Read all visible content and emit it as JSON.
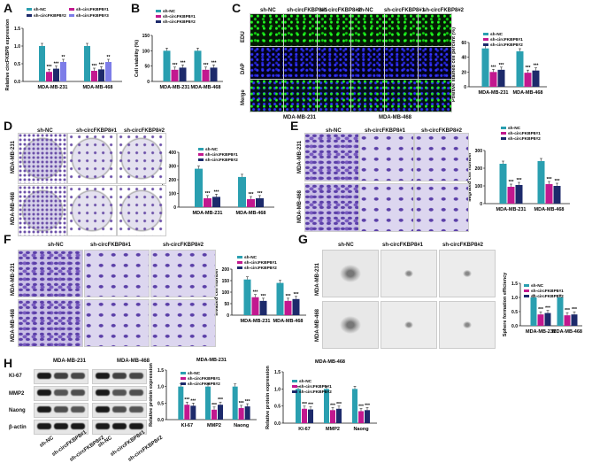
{
  "panels": {
    "A": "A",
    "B": "B",
    "C": "C",
    "D": "D",
    "E": "E",
    "F": "F",
    "G": "G",
    "H": "H"
  },
  "colors": {
    "nc": "#2a9fb0",
    "cf1": "#c2188f",
    "cf2": "#1d2a6b",
    "cf3": "#7d7de8"
  },
  "groups": {
    "nc": "sh-NC",
    "cf1": "sh-circFKBP8#1",
    "cf2": "sh-circFKBP8#2",
    "cf3": "sh-circFKBP8#3"
  },
  "cells": {
    "a": "MDA-MB-231",
    "b": "MDA-MB-468"
  },
  "stain": {
    "edu": "EDU",
    "dap": "DAP",
    "merge": "Merge"
  },
  "wb": {
    "ki67": "KI-67",
    "mmp2": "MMP2",
    "naong": "Naong",
    "actin": "β-actin"
  },
  "chart_data": [
    {
      "id": "A",
      "type": "bar",
      "ylabel": "Relative circFKBP8 expression",
      "ylim": [
        0,
        1.5
      ],
      "yticks": [
        "0.0",
        "0.5",
        "1.0",
        "1.5"
      ],
      "categories": [
        "MDA-MB-231",
        "MDA-MB-468"
      ],
      "series": [
        {
          "name": "sh-NC",
          "values": [
            1.0,
            1.0
          ]
        },
        {
          "name": "sh-circFKBP8#1",
          "values": [
            0.27,
            0.3
          ]
        },
        {
          "name": "sh-circFKBP8#2",
          "values": [
            0.36,
            0.34
          ]
        },
        {
          "name": "sh-circFKBP8#3",
          "values": [
            0.55,
            0.55
          ]
        }
      ],
      "sig": [
        [
          "",
          "***",
          "***",
          "**"
        ],
        [
          "",
          "***",
          "***",
          "**"
        ]
      ]
    },
    {
      "id": "B",
      "type": "bar",
      "ylabel": "Cell viability (%)",
      "ylim": [
        0,
        150
      ],
      "yticks": [
        "0",
        "50",
        "100",
        "150"
      ],
      "categories": [
        "MDA-MB-231",
        "MDA-MB-468"
      ],
      "series": [
        {
          "name": "sh-NC",
          "values": [
            100,
            100
          ]
        },
        {
          "name": "sh-circFKBP8#1",
          "values": [
            38,
            38
          ]
        },
        {
          "name": "sh-circFKBP8#2",
          "values": [
            45,
            45
          ]
        }
      ],
      "sig": [
        [
          "",
          "***",
          "***"
        ],
        [
          "",
          "***",
          "***"
        ]
      ]
    },
    {
      "id": "C",
      "type": "bar",
      "ylabel": "Positive stained cell percent (%)",
      "ylim": [
        0,
        60
      ],
      "yticks": [
        "0",
        "20",
        "40",
        "60"
      ],
      "categories": [
        "MDA-MB-231",
        "MDA-MB-468"
      ],
      "series": [
        {
          "name": "sh-NC",
          "values": [
            52,
            48
          ]
        },
        {
          "name": "sh-circFKBP8#1",
          "values": [
            20,
            19
          ]
        },
        {
          "name": "sh-circFKBP8#2",
          "values": [
            23,
            22
          ]
        }
      ],
      "sig": [
        [
          "",
          "***",
          "***"
        ],
        [
          "",
          "***",
          "***"
        ]
      ]
    },
    {
      "id": "D",
      "type": "bar",
      "ylabel": "Number of colonies",
      "ylim": [
        0,
        400
      ],
      "yticks": [
        "0",
        "100",
        "200",
        "300",
        "400"
      ],
      "categories": [
        "MDA-MB-231",
        "MDA-MB-468"
      ],
      "series": [
        {
          "name": "sh-NC",
          "values": [
            280,
            220
          ]
        },
        {
          "name": "sh-circFKBP8#1",
          "values": [
            65,
            58
          ]
        },
        {
          "name": "sh-circFKBP8#2",
          "values": [
            75,
            65
          ]
        }
      ],
      "sig": [
        [
          "",
          "***",
          "***"
        ],
        [
          "",
          "***",
          "***"
        ]
      ]
    },
    {
      "id": "E",
      "type": "bar",
      "ylabel": "Migrated cell number",
      "ylim": [
        0,
        300
      ],
      "yticks": [
        "0",
        "100",
        "200",
        "300"
      ],
      "categories": [
        "MDA-MB-231",
        "MDA-MB-468"
      ],
      "series": [
        {
          "name": "sh-NC",
          "values": [
            225,
            240
          ]
        },
        {
          "name": "sh-circFKBP8#1",
          "values": [
            95,
            110
          ]
        },
        {
          "name": "sh-circFKBP8#2",
          "values": [
            105,
            100
          ]
        }
      ],
      "sig": [
        [
          "",
          "***",
          "***"
        ],
        [
          "",
          "***",
          "***"
        ]
      ]
    },
    {
      "id": "F",
      "type": "bar",
      "ylabel": "Invaded cell number",
      "ylim": [
        0,
        200
      ],
      "yticks": [
        "0",
        "50",
        "100",
        "150",
        "200"
      ],
      "categories": [
        "MDA-MB-231",
        "MDA-MB-468"
      ],
      "series": [
        {
          "name": "sh-NC",
          "values": [
            155,
            140
          ]
        },
        {
          "name": "sh-circFKBP8#1",
          "values": [
            78,
            62
          ]
        },
        {
          "name": "sh-circFKBP8#2",
          "values": [
            62,
            70
          ]
        }
      ],
      "sig": [
        [
          "",
          "***",
          "***"
        ],
        [
          "",
          "***",
          "***"
        ]
      ]
    },
    {
      "id": "G",
      "type": "bar",
      "ylabel": "Sphere formation efficiency",
      "ylim": [
        0,
        1.5
      ],
      "yticks": [
        "0.0",
        "0.5",
        "1.0",
        "1.5"
      ],
      "categories": [
        "MDA-MB-231",
        "MDA-MB-468"
      ],
      "series": [
        {
          "name": "sh-NC",
          "values": [
            1.0,
            1.0
          ]
        },
        {
          "name": "sh-circFKBP8#1",
          "values": [
            0.4,
            0.37
          ]
        },
        {
          "name": "sh-circFKBP8#2",
          "values": [
            0.45,
            0.4
          ]
        }
      ],
      "sig": [
        [
          "",
          "***",
          "***"
        ],
        [
          "",
          "***",
          "***"
        ]
      ]
    },
    {
      "id": "H1",
      "type": "bar",
      "title": "MDA-MB-231",
      "ylabel": "Relative protein expression",
      "ylim": [
        0,
        1.5
      ],
      "yticks": [
        "0.0",
        "0.5",
        "1.0",
        "1.5"
      ],
      "categories": [
        "KI-67",
        "MMP2",
        "Naong"
      ],
      "series": [
        {
          "name": "sh-NC",
          "values": [
            1.0,
            1.0,
            1.0
          ]
        },
        {
          "name": "sh-circFKBP8#1",
          "values": [
            0.45,
            0.3,
            0.35
          ]
        },
        {
          "name": "sh-circFKBP8#2",
          "values": [
            0.42,
            0.45,
            0.4
          ]
        }
      ],
      "sig": [
        [
          "",
          "***",
          "***"
        ],
        [
          "",
          "***",
          "***"
        ],
        [
          "",
          "***",
          "***"
        ]
      ]
    },
    {
      "id": "H2",
      "type": "bar",
      "title": "MDA-MB-468",
      "ylabel": "Relative protein expression",
      "ylim": [
        0,
        1.5
      ],
      "yticks": [
        "0.0",
        "0.5",
        "1.0",
        "1.5"
      ],
      "categories": [
        "KI-67",
        "MMP2",
        "Naong"
      ],
      "series": [
        {
          "name": "sh-NC",
          "values": [
            1.0,
            1.0,
            1.0
          ]
        },
        {
          "name": "sh-circFKBP8#1",
          "values": [
            0.42,
            0.38,
            0.35
          ]
        },
        {
          "name": "sh-circFKBP8#2",
          "values": [
            0.4,
            0.42,
            0.38
          ]
        }
      ],
      "sig": [
        [
          "",
          "***",
          "***"
        ],
        [
          "",
          "***",
          "***"
        ],
        [
          "",
          "***",
          "***"
        ]
      ]
    }
  ]
}
